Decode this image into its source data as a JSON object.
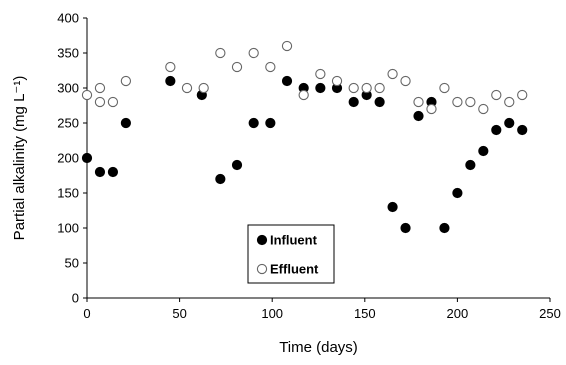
{
  "chart_data": {
    "type": "scatter",
    "title": "",
    "xlabel": "Time (days)",
    "ylabel": "Partial alkalinity (mg L⁻¹)",
    "xlim": [
      0,
      250
    ],
    "ylim": [
      0,
      400
    ],
    "xticks": [
      "0",
      "50",
      "100",
      "150",
      "200",
      "250"
    ],
    "yticks": [
      "0",
      "50",
      "100",
      "150",
      "200",
      "250",
      "300",
      "350",
      "400"
    ],
    "grid": false,
    "legend_placement": "lower-center",
    "series": [
      {
        "name": "Influent",
        "marker": "filled-circle",
        "color": "#000000",
        "points": [
          [
            0,
            200
          ],
          [
            7,
            180
          ],
          [
            14,
            180
          ],
          [
            21,
            250
          ],
          [
            45,
            310
          ],
          [
            62,
            290
          ],
          [
            72,
            170
          ],
          [
            81,
            190
          ],
          [
            90,
            250
          ],
          [
            99,
            250
          ],
          [
            108,
            310
          ],
          [
            117,
            300
          ],
          [
            126,
            300
          ],
          [
            135,
            300
          ],
          [
            144,
            280
          ],
          [
            151,
            290
          ],
          [
            158,
            280
          ],
          [
            165,
            130
          ],
          [
            172,
            100
          ],
          [
            179,
            260
          ],
          [
            186,
            280
          ],
          [
            193,
            100
          ],
          [
            200,
            150
          ],
          [
            207,
            190
          ],
          [
            214,
            210
          ],
          [
            221,
            240
          ],
          [
            228,
            250
          ],
          [
            235,
            240
          ]
        ]
      },
      {
        "name": "Effluent",
        "marker": "open-circle",
        "color": "#000000",
        "points": [
          [
            0,
            290
          ],
          [
            7,
            280
          ],
          [
            7,
            300
          ],
          [
            14,
            280
          ],
          [
            21,
            310
          ],
          [
            45,
            330
          ],
          [
            54,
            300
          ],
          [
            63,
            300
          ],
          [
            72,
            350
          ],
          [
            81,
            330
          ],
          [
            90,
            350
          ],
          [
            99,
            330
          ],
          [
            108,
            360
          ],
          [
            117,
            290
          ],
          [
            126,
            320
          ],
          [
            135,
            310
          ],
          [
            144,
            300
          ],
          [
            151,
            300
          ],
          [
            158,
            300
          ],
          [
            165,
            320
          ],
          [
            172,
            310
          ],
          [
            179,
            280
          ],
          [
            186,
            270
          ],
          [
            193,
            300
          ],
          [
            200,
            280
          ],
          [
            207,
            280
          ],
          [
            214,
            270
          ],
          [
            221,
            290
          ],
          [
            228,
            280
          ],
          [
            235,
            290
          ]
        ]
      }
    ]
  }
}
